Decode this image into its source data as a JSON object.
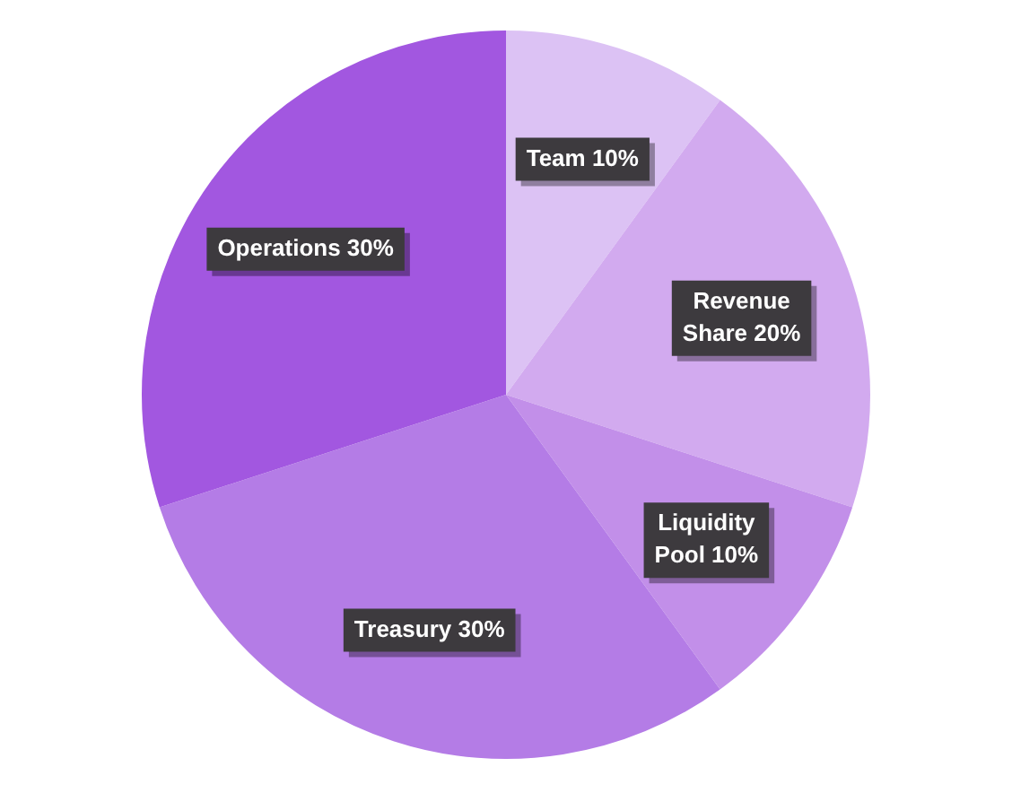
{
  "chart_data": {
    "type": "pie",
    "categories": [
      "Team",
      "Revenue Share",
      "Liquidity Pool",
      "Treasury",
      "Operations"
    ],
    "values": [
      10,
      20,
      10,
      30,
      30
    ],
    "value_labels": [
      "10%",
      "20%",
      "10%",
      "30%",
      "30%"
    ],
    "colors": [
      "#dcc2f4",
      "#d2aaef",
      "#c28fe9",
      "#b47ce6",
      "#a257e0"
    ],
    "legend": false
  }
}
